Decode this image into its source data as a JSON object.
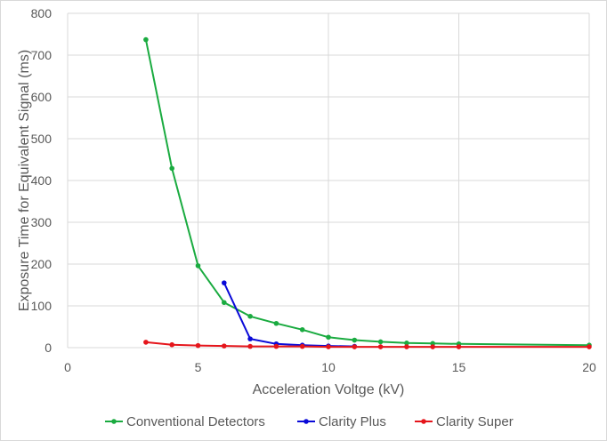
{
  "chart_data": {
    "type": "line",
    "title": "",
    "xlabel": "Acceleration Voltge (kV)",
    "ylabel": "Exposure Time for Equivalent Signal (ms)",
    "xlim": [
      0,
      20
    ],
    "ylim": [
      0,
      800
    ],
    "xticks": [
      0,
      5,
      10,
      15,
      20
    ],
    "yticks": [
      0,
      100,
      200,
      300,
      400,
      500,
      600,
      700,
      800
    ],
    "grid": "vertical and horizontal",
    "legend_position": "bottom",
    "series": [
      {
        "name": "Conventional Detectors",
        "color": "#1aab40",
        "x": [
          3,
          4,
          5,
          6,
          7,
          8,
          9,
          10,
          11,
          12,
          13,
          14,
          15,
          20
        ],
        "y": [
          737,
          429,
          196,
          108,
          75,
          58,
          43,
          25,
          18,
          14,
          11,
          10,
          9,
          6
        ]
      },
      {
        "name": "Clarity Plus",
        "color": "#0a0ad8",
        "x": [
          6,
          7,
          8,
          9,
          10,
          11
        ],
        "y": [
          155,
          21,
          9,
          6,
          4,
          3
        ]
      },
      {
        "name": "Clarity Super",
        "color": "#e5151b",
        "x": [
          3,
          4,
          5,
          6,
          7,
          8,
          9,
          10,
          11,
          12,
          13,
          14,
          15,
          20
        ],
        "y": [
          13,
          7,
          5,
          4,
          3,
          3,
          3,
          2,
          2,
          2,
          2,
          2,
          2,
          2
        ]
      }
    ]
  }
}
